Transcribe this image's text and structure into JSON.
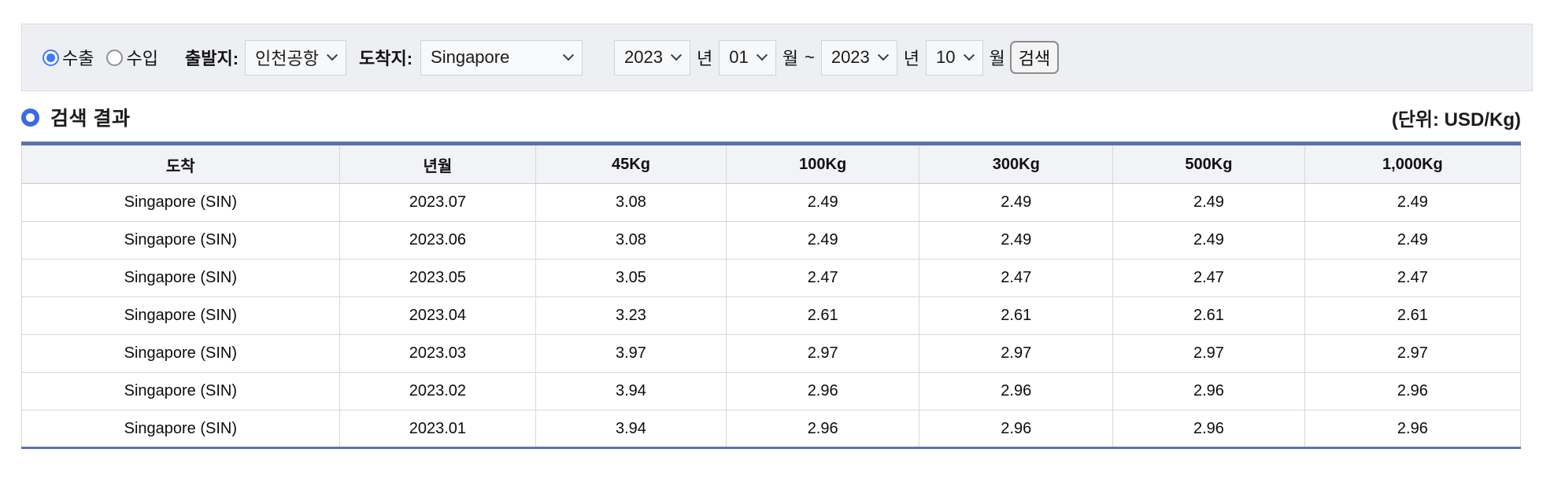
{
  "form": {
    "radio_export_label": "수출",
    "radio_import_label": "수입",
    "departure_label": "출발지:",
    "departure_value": "인천공항",
    "arrival_label": "도착지:",
    "arrival_value": "Singapore",
    "start_year": "2023",
    "start_month": "01",
    "end_year": "2023",
    "end_month": "10",
    "year_suffix": "년",
    "month_suffix": "월",
    "range_tilde": "~",
    "search_button_label": "검색"
  },
  "results": {
    "title": "검색 결과",
    "unit_label": "(단위: USD/Kg)"
  },
  "table": {
    "headers": [
      "도착",
      "년월",
      "45Kg",
      "100Kg",
      "300Kg",
      "500Kg",
      "1,000Kg"
    ],
    "col_widths": [
      "21.2%",
      "13.1%",
      "12.7%",
      "12.9%",
      "12.9%",
      "12.8%",
      "14.4%"
    ],
    "rows": [
      [
        "Singapore (SIN)",
        "2023.07",
        "3.08",
        "2.49",
        "2.49",
        "2.49",
        "2.49"
      ],
      [
        "Singapore (SIN)",
        "2023.06",
        "3.08",
        "2.49",
        "2.49",
        "2.49",
        "2.49"
      ],
      [
        "Singapore (SIN)",
        "2023.05",
        "3.05",
        "2.47",
        "2.47",
        "2.47",
        "2.47"
      ],
      [
        "Singapore (SIN)",
        "2023.04",
        "3.23",
        "2.61",
        "2.61",
        "2.61",
        "2.61"
      ],
      [
        "Singapore (SIN)",
        "2023.03",
        "3.97",
        "2.97",
        "2.97",
        "2.97",
        "2.97"
      ],
      [
        "Singapore (SIN)",
        "2023.02",
        "3.94",
        "2.96",
        "2.96",
        "2.96",
        "2.96"
      ],
      [
        "Singapore (SIN)",
        "2023.01",
        "3.94",
        "2.96",
        "2.96",
        "2.96",
        "2.96"
      ]
    ]
  },
  "colors": {
    "table_accent": "#5a72b4",
    "radio_selected": "#3e7bf7",
    "bullet_ring": "#3b6be0",
    "form_bar_bg": "#edeff2",
    "header_bg": "#f2f3f6"
  }
}
